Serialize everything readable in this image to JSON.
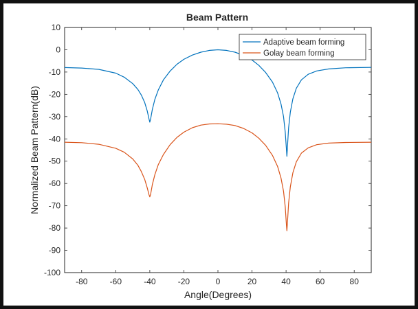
{
  "chart_data": {
    "type": "line",
    "title": "Beam Pattern",
    "xlabel": "Angle(Degrees)",
    "ylabel": "Normalized Beam Pattern(dB)",
    "xlim": [
      -90,
      90
    ],
    "ylim": [
      -100,
      10
    ],
    "xticks": [
      -80,
      -60,
      -40,
      -20,
      0,
      20,
      40,
      60,
      80
    ],
    "yticks": [
      10,
      0,
      -10,
      -20,
      -30,
      -40,
      -50,
      -60,
      -70,
      -80,
      -90,
      -100
    ],
    "grid": false,
    "legend_position": "top-right",
    "series": [
      {
        "name": "Adaptive beam forming",
        "color": "#0072BD",
        "x": [
          -90,
          -80,
          -70,
          -60,
          -55,
          -50,
          -47,
          -45,
          -43,
          -41.5,
          -40.5,
          -40,
          -39.5,
          -38.5,
          -37,
          -35,
          -32,
          -28,
          -24,
          -20,
          -15,
          -10,
          -5,
          0,
          5,
          10,
          15,
          20,
          24,
          28,
          32,
          35,
          37,
          38.5,
          39.5,
          40.2,
          40.5,
          41,
          41.5,
          42.5,
          44,
          46,
          49,
          53,
          58,
          65,
          75,
          90
        ],
        "y": [
          -8,
          -8.2,
          -8.8,
          -10.5,
          -12.3,
          -15.2,
          -17.8,
          -20.3,
          -23.7,
          -27.5,
          -31,
          -32.5,
          -31,
          -26.8,
          -22.2,
          -18,
          -13.5,
          -9.5,
          -6.5,
          -4.3,
          -2.4,
          -1.1,
          -0.3,
          0,
          -0.3,
          -1.1,
          -2.5,
          -4.6,
          -7,
          -10.2,
          -14.5,
          -19.3,
          -24.3,
          -30,
          -37,
          -44.5,
          -47.8,
          -41,
          -35,
          -28,
          -22,
          -17.3,
          -13.5,
          -11,
          -9.5,
          -8.6,
          -8.1,
          -7.9
        ]
      },
      {
        "name": "Golay beam forming",
        "color": "#D95319",
        "x": [
          -90,
          -80,
          -70,
          -60,
          -55,
          -50,
          -47,
          -45,
          -43,
          -41.5,
          -40.5,
          -40,
          -39.5,
          -38.5,
          -37,
          -35,
          -32,
          -28,
          -24,
          -20,
          -15,
          -10,
          -5,
          0,
          5,
          10,
          15,
          20,
          24,
          28,
          32,
          35,
          37,
          38.5,
          39.5,
          40.2,
          40.5,
          41,
          41.5,
          42.5,
          44,
          46,
          49,
          53,
          58,
          65,
          75,
          90
        ],
        "y": [
          -41.5,
          -41.7,
          -42.4,
          -44.2,
          -46,
          -49,
          -51.8,
          -54.6,
          -58.2,
          -62,
          -65,
          -66,
          -64.8,
          -60.5,
          -56,
          -51.5,
          -47,
          -42.5,
          -39.3,
          -37,
          -35,
          -33.8,
          -33.3,
          -33.2,
          -33.4,
          -34,
          -35.3,
          -37.3,
          -39.7,
          -42.9,
          -47.4,
          -52.3,
          -57.5,
          -63.5,
          -70.5,
          -78.5,
          -81.2,
          -75,
          -68.8,
          -61.5,
          -55.2,
          -50.3,
          -46.4,
          -44,
          -42.6,
          -41.9,
          -41.6,
          -41.5
        ]
      }
    ]
  }
}
